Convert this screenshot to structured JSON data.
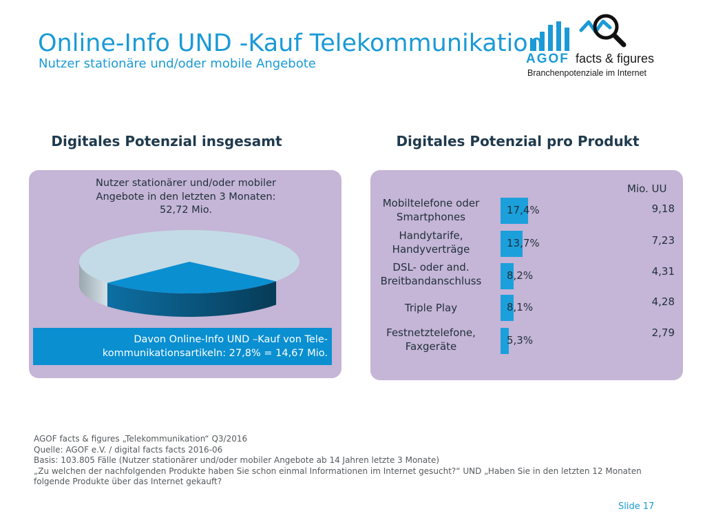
{
  "header": {
    "title": "Online-Info UND -Kauf Telekommunikation",
    "subtitle": "Nutzer stationäre und/oder mobile Angebote"
  },
  "logo": {
    "brand": "AGOF",
    "suffix": "facts & figures",
    "tagline": "Branchenpotenziale im Internet",
    "accent_color": "#1a9ad6"
  },
  "left": {
    "heading": "Digitales Potenzial insgesamt",
    "caption_lines": [
      "Nutzer stationärer und/oder mobiler",
      "Angebote in den letzten 3 Monaten:",
      "52,72 Mio."
    ],
    "footer_lines": [
      "Davon Online-Info UND –Kauf von Tele-",
      "kommunikationsartikeln: 27,8% = 14,67 Mio."
    ]
  },
  "right": {
    "heading": "Digitales Potenzial pro Produkt",
    "unit_label": "Mio. UU"
  },
  "chart_data": [
    {
      "type": "pie",
      "slices": [
        {
          "label": "Davon Online-Info UND –Kauf von Telekommunikationsartikeln",
          "value": 27.8,
          "color": "#0a8fd1"
        },
        {
          "label": "",
          "value": 72.2,
          "color": "#c3dbe6"
        }
      ]
    },
    {
      "type": "bar",
      "orientation": "horizontal",
      "categories": [
        [
          "Mobiltelefone oder",
          "Smartphones"
        ],
        [
          "Handytarife,",
          "Handyverträge"
        ],
        [
          "DSL- oder and.",
          "Breitbandanschluss"
        ],
        [
          "Triple Play"
        ],
        [
          "Festnetztelefone,",
          "Faxgeräte"
        ]
      ],
      "values": [
        17.4,
        13.7,
        8.2,
        8.1,
        5.3
      ],
      "value_labels": [
        "17,4%",
        "13,7%",
        "8,2%",
        "8,1%",
        "5,3%"
      ],
      "mio_values": [
        "9,18",
        "7,23",
        "4,31",
        "4,28",
        "2,79"
      ],
      "xlim": [
        0,
        100
      ],
      "bar_color": "#1ba0dc"
    }
  ],
  "footer": {
    "notes": [
      "AGOF facts & figures „Telekommunikation“ Q3/2016",
      "Quelle: AGOF e.V. / digital facts facts 2016-06",
      "Basis: 103.805 Fälle (Nutzer stationärer und/oder mobiler Angebote ab 14 Jahren letzte 3 Monate)",
      "„Zu welchen der nachfolgenden Produkte haben Sie schon einmal Informationen im Internet gesucht?“ UND „Haben Sie in den letzten 12 Monaten folgende Produkte über das Internet gekauft?"
    ],
    "slide_label": "Slide 17"
  }
}
